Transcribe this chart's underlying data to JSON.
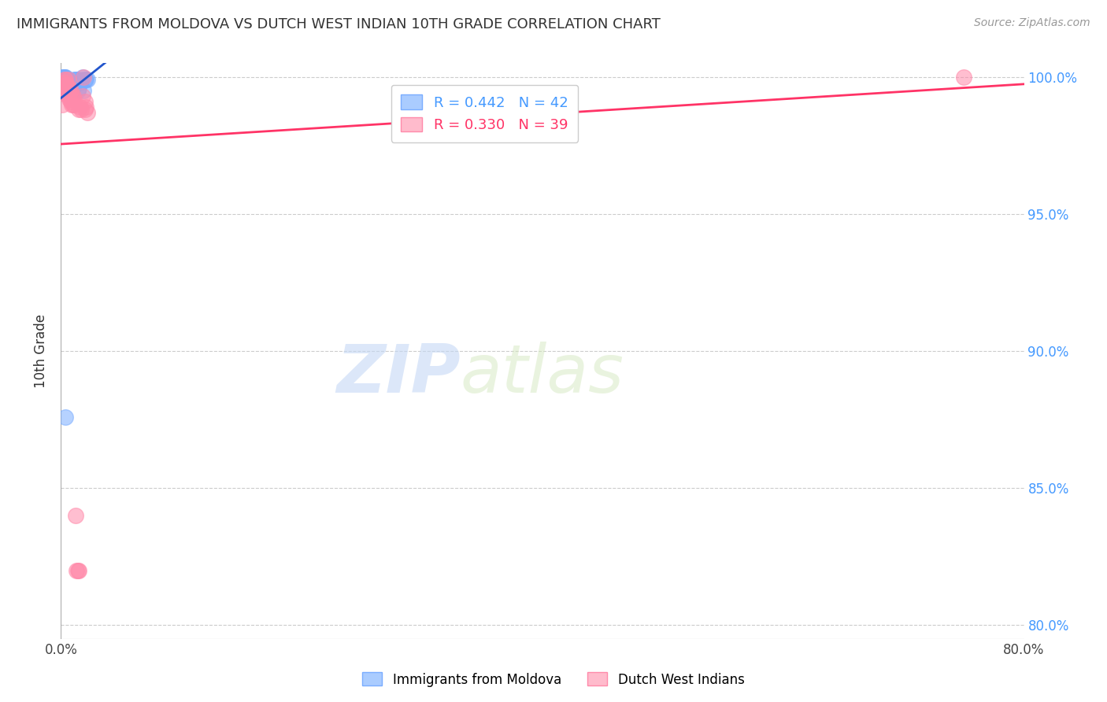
{
  "title": "IMMIGRANTS FROM MOLDOVA VS DUTCH WEST INDIAN 10TH GRADE CORRELATION CHART",
  "source": "Source: ZipAtlas.com",
  "ylabel": "10th Grade",
  "blue_color": "#7aadff",
  "pink_color": "#ff8aaa",
  "blue_line_color": "#2255cc",
  "pink_line_color": "#ff3366",
  "watermark_zip": "ZIP",
  "watermark_atlas": "atlas",
  "background_color": "#ffffff",
  "grid_color": "#cccccc",
  "title_color": "#333333",
  "source_color": "#999999",
  "right_axis_color": "#4499ff",
  "xlim": [
    0.0,
    0.8
  ],
  "ylim": [
    0.795,
    1.005
  ],
  "yticks": [
    0.8,
    0.85,
    0.9,
    0.95,
    1.0
  ],
  "yticklabels": [
    "80.0%",
    "85.0%",
    "90.0%",
    "95.0%",
    "100.0%"
  ],
  "xticks": [
    0.0,
    0.8
  ],
  "xticklabels": [
    "0.0%",
    "80.0%"
  ],
  "moldova_x": [
    0.001,
    0.002,
    0.003,
    0.002,
    0.003,
    0.004,
    0.003,
    0.004,
    0.005,
    0.004,
    0.005,
    0.004,
    0.005,
    0.005,
    0.005,
    0.006,
    0.006,
    0.005,
    0.006,
    0.007,
    0.007,
    0.007,
    0.008,
    0.009,
    0.009,
    0.01,
    0.01,
    0.01,
    0.011,
    0.012,
    0.013,
    0.014,
    0.015,
    0.016,
    0.017,
    0.018,
    0.019,
    0.02,
    0.021,
    0.022,
    0.003,
    0.004
  ],
  "moldova_y": [
    1.0,
    1.0,
    1.0,
    0.999,
    0.999,
    1.0,
    1.0,
    0.999,
    0.999,
    0.998,
    0.998,
    0.999,
    0.998,
    0.997,
    0.999,
    0.998,
    0.997,
    0.997,
    0.999,
    0.997,
    0.998,
    0.997,
    0.997,
    0.997,
    0.996,
    0.997,
    0.996,
    0.998,
    0.999,
    0.999,
    0.999,
    0.995,
    0.996,
    0.998,
    0.999,
    1.0,
    0.995,
    0.999,
    0.999,
    0.999,
    0.999,
    0.876
  ],
  "dutch_x": [
    0.001,
    0.002,
    0.003,
    0.003,
    0.004,
    0.004,
    0.005,
    0.005,
    0.006,
    0.006,
    0.007,
    0.007,
    0.008,
    0.008,
    0.009,
    0.009,
    0.01,
    0.01,
    0.011,
    0.011,
    0.012,
    0.013,
    0.014,
    0.015,
    0.015,
    0.016,
    0.017,
    0.018,
    0.019,
    0.02,
    0.021,
    0.022,
    0.003,
    0.004,
    0.005,
    0.006,
    0.007,
    0.75,
    0.02
  ],
  "dutch_y": [
    0.99,
    0.998,
    0.996,
    0.994,
    0.998,
    0.997,
    0.996,
    0.994,
    0.996,
    0.993,
    0.994,
    0.992,
    0.995,
    0.991,
    0.993,
    0.99,
    0.993,
    0.99,
    0.992,
    0.99,
    0.84,
    0.82,
    0.82,
    0.988,
    0.82,
    0.989,
    0.988,
    0.993,
    1.0,
    0.988,
    0.989,
    0.987,
    0.999,
    0.999,
    0.997,
    0.999,
    0.996,
    1.0,
    0.991
  ],
  "legend1_label": "R = 0.442   N = 42",
  "legend2_label": "R = 0.330   N = 39",
  "legend_bottom1": "Immigrants from Moldova",
  "legend_bottom2": "Dutch West Indians"
}
